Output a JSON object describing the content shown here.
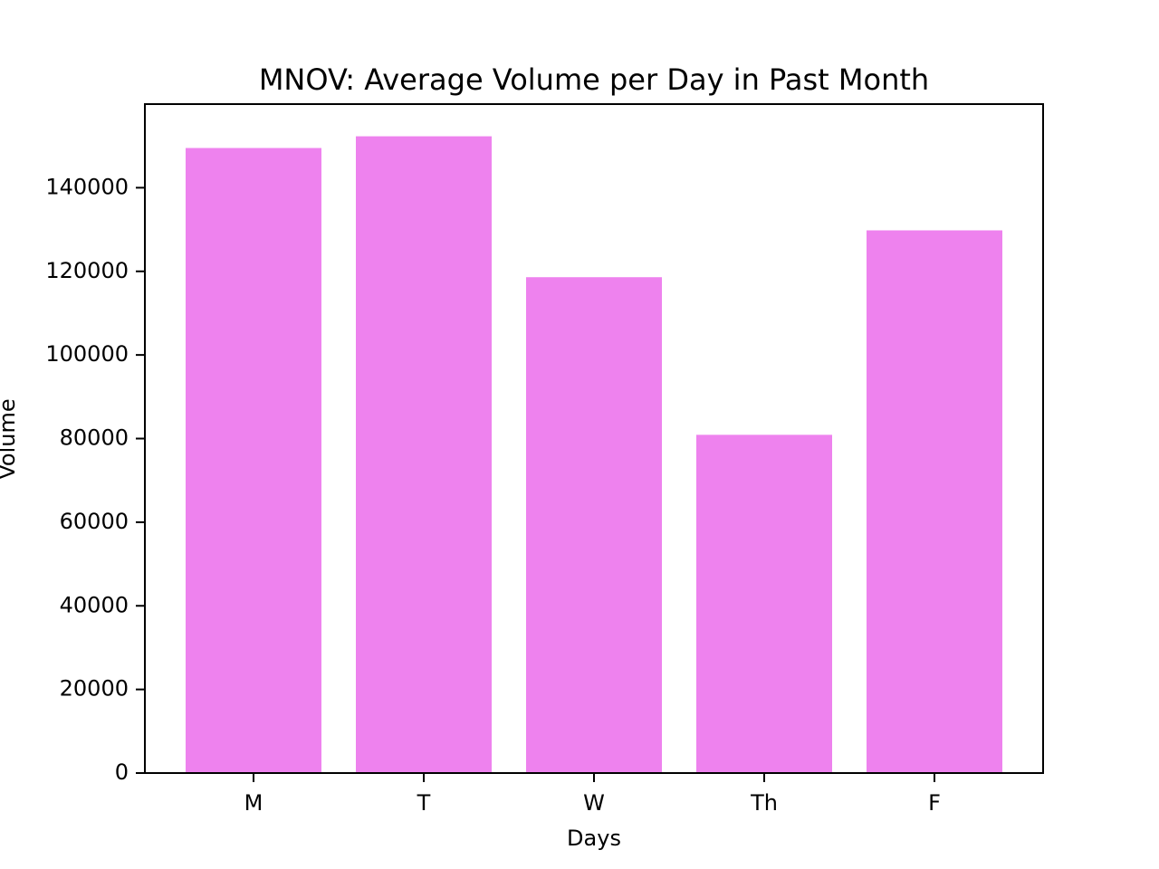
{
  "chart_data": {
    "type": "bar",
    "title": "MNOV: Average Volume per Day in Past Month",
    "xlabel": "Days",
    "ylabel": "Volume",
    "categories": [
      "M",
      "T",
      "W",
      "Th",
      "F"
    ],
    "values": [
      149500,
      152300,
      118600,
      80900,
      129800
    ],
    "ylim": [
      0,
      160000
    ],
    "yticks": [
      0,
      20000,
      40000,
      60000,
      80000,
      100000,
      120000,
      140000
    ],
    "ytick_labels": [
      "0",
      "20000",
      "40000",
      "60000",
      "80000",
      "100000",
      "120000",
      "140000"
    ],
    "bar_color": "#ee82ee",
    "grid": false,
    "legend": false
  }
}
